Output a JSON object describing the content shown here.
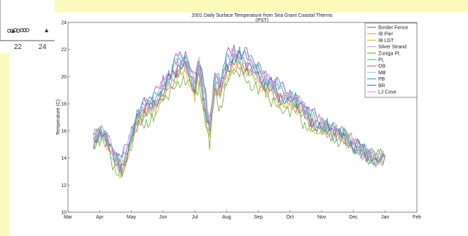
{
  "inset": {
    "tick_labels": [
      "22",
      "24"
    ],
    "marker_glyph": "▲"
  },
  "chart_data": {
    "type": "line",
    "title": "2001 Daily Surface Temperature from Sea Grant Coastal Therms",
    "subtitle": "(PST)",
    "xlabel": "",
    "ylabel": "Temperature (C)",
    "ylim": [
      10,
      24
    ],
    "yticks": [
      10,
      12,
      14,
      16,
      18,
      20,
      22,
      24
    ],
    "x_ticks": [
      "Mar",
      "Apr",
      "May",
      "Jun",
      "Jul",
      "Aug",
      "Sep",
      "Oct",
      "Nov",
      "Dec",
      "Jan",
      "Feb"
    ],
    "grid": false,
    "legend_position": "top-right",
    "series": [
      {
        "name": "Border Fence",
        "color": "#9a5fb5",
        "offset": 0.9
      },
      {
        "name": "IB Pier",
        "color": "#e8a23c",
        "offset": -0.2
      },
      {
        "name": "IB LGT",
        "color": "#c8c83a",
        "offset": -0.4
      },
      {
        "name": "Silver Strand",
        "color": "#d4a9d4",
        "offset": 0.3
      },
      {
        "name": "Zuniga Pt.",
        "color": "#73b843",
        "offset": -0.9
      },
      {
        "name": "PL",
        "color": "#4bc08e",
        "offset": 0.1
      },
      {
        "name": "OB",
        "color": "#e07070",
        "offset": -0.1
      },
      {
        "name": "MB",
        "color": "#9ad1e8",
        "offset": 0.5
      },
      {
        "name": "PB",
        "color": "#3fa8c8",
        "offset": 0.6
      },
      {
        "name": "BR",
        "color": "#4a6fc8",
        "offset": 0.2
      },
      {
        "name": "LJ Cove",
        "color": "#e39ad1",
        "offset": 0.4
      }
    ],
    "base_curve_x": [
      "Mar 25",
      "Apr 1",
      "Apr 8",
      "Apr 15",
      "Apr 22",
      "May 1",
      "May 8",
      "May 15",
      "May 22",
      "Jun 1",
      "Jun 8",
      "Jun 15",
      "Jun 22",
      "Jul 1",
      "Jul 5",
      "Jul 10",
      "Jul 15",
      "Jul 20",
      "Jul 25",
      "Aug 1",
      "Aug 8",
      "Aug 15",
      "Aug 22",
      "Sep 1",
      "Sep 8",
      "Sep 15",
      "Sep 22",
      "Oct 1",
      "Oct 8",
      "Oct 15",
      "Oct 22",
      "Nov 1",
      "Nov 8",
      "Nov 15",
      "Nov 22",
      "Dec 1",
      "Dec 8",
      "Dec 15",
      "Dec 22",
      "Jan 1"
    ],
    "base_curve_y": [
      15.2,
      15.8,
      15.4,
      13.8,
      13.2,
      15.5,
      17.0,
      17.5,
      17.8,
      19.0,
      19.6,
      20.5,
      20.8,
      19.2,
      20.5,
      18.0,
      16.0,
      19.5,
      18.8,
      20.5,
      21.2,
      21.0,
      20.6,
      20.0,
      19.4,
      19.0,
      18.4,
      18.2,
      18.0,
      17.2,
      16.6,
      16.4,
      16.0,
      15.8,
      15.6,
      15.0,
      14.6,
      14.2,
      13.9,
      14.1
    ]
  }
}
